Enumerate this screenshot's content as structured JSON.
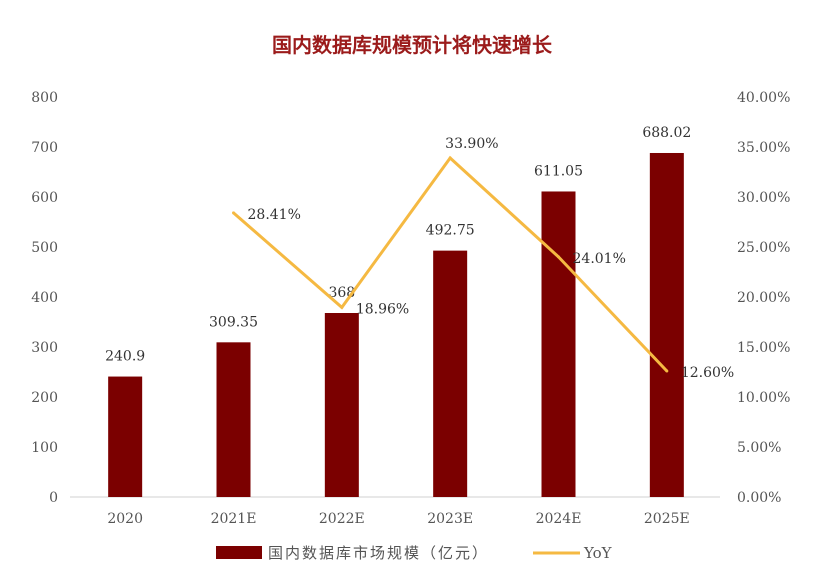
{
  "chart_data": {
    "type": "bar+line",
    "title": "国内数据库规模预计将快速增长",
    "categories": [
      "2020",
      "2021E",
      "2022E",
      "2023E",
      "2024E",
      "2025E"
    ],
    "series": [
      {
        "name": "国内数据库市场规模（亿元）",
        "type": "bar",
        "axis": "left",
        "color": "#7B0000",
        "values": [
          240.9,
          309.35,
          368,
          492.75,
          611.05,
          688.02
        ],
        "labels": [
          "240.9",
          "309.35",
          "368",
          "492.75",
          "611.05",
          "688.02"
        ]
      },
      {
        "name": "YoY",
        "type": "line",
        "axis": "right",
        "color": "#F5B942",
        "values": [
          null,
          28.41,
          18.96,
          33.9,
          24.01,
          12.6
        ],
        "labels": [
          "",
          "28.41%",
          "18.96%",
          "33.90%",
          "24.01%",
          "12.60%"
        ]
      }
    ],
    "left_axis": {
      "ylim": [
        0,
        800
      ],
      "ticks": [
        "0",
        "100",
        "200",
        "300",
        "400",
        "500",
        "600",
        "700",
        "800"
      ]
    },
    "right_axis": {
      "ylim": [
        0,
        40
      ],
      "ticks": [
        "0.00%",
        "5.00%",
        "10.00%",
        "15.00%",
        "20.00%",
        "25.00%",
        "30.00%",
        "35.00%",
        "40.00%"
      ]
    },
    "grid": false,
    "legend": "bottom",
    "title_color": "#9B1B1B"
  }
}
